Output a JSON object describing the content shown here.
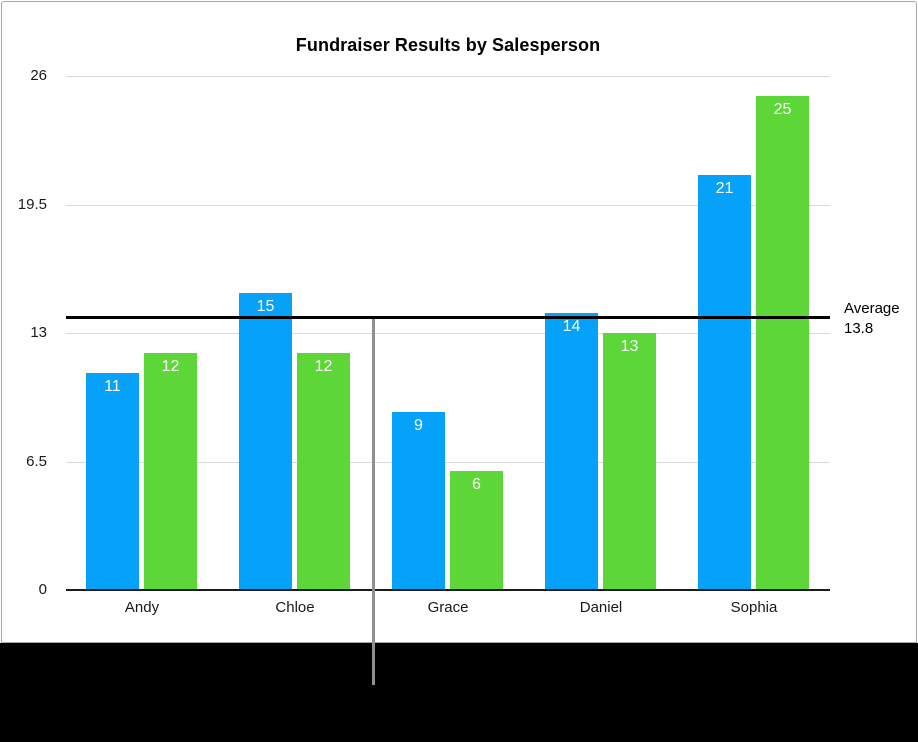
{
  "chart": {
    "title": "Fundraiser Results by Salesperson",
    "average_label_line1": "Average",
    "average_label_line2": "13.8"
  },
  "chart_data": {
    "type": "bar",
    "title": "Fundraiser Results by Salesperson",
    "categories": [
      "Andy",
      "Chloe",
      "Grace",
      "Daniel",
      "Sophia"
    ],
    "series": [
      {
        "name": "blue-series",
        "color": "#06A1F8",
        "values": [
          11,
          15,
          9,
          14,
          21
        ]
      },
      {
        "name": "green-series",
        "color": "#5DD637",
        "values": [
          12,
          12,
          6,
          13,
          25
        ]
      }
    ],
    "bar_value_labels": [
      [
        11,
        15,
        9,
        14,
        21
      ],
      [
        12,
        12,
        6,
        13,
        25
      ]
    ],
    "yticks": [
      "0",
      "6.5",
      "13",
      "19.5",
      "26"
    ],
    "ytick_values": [
      0,
      6.5,
      13,
      19.5,
      26
    ],
    "ylim": [
      0,
      26
    ],
    "grid": true,
    "legend": "none",
    "annotation": {
      "label": "Average",
      "value_label": "13.8",
      "value": 13.8
    }
  },
  "colors": {
    "series_blue": "#06A1F8",
    "series_green": "#5DD637",
    "average_line": "#000000",
    "gridline": "#D9D9D9",
    "axis_line": "#1C1C1C",
    "page_border": "#A8A8A8",
    "page_background": "#FFFFFF",
    "outside_page_background": "#000000",
    "page_break_divider": "#909090",
    "bar_label_text": "#FFFFFF"
  }
}
